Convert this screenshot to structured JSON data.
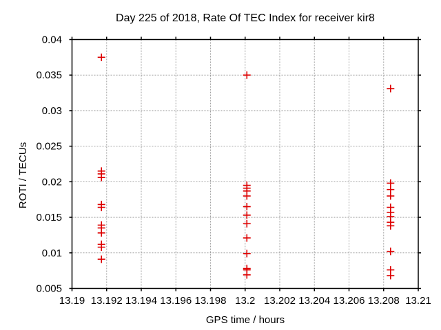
{
  "style": {
    "background": "#ffffff",
    "text_color": "#000000",
    "border_color": "#000000",
    "grid_color": "#a0a0a0",
    "marker_color": "#dd0000"
  },
  "chart_data": {
    "type": "scatter",
    "title": "Day 225 of 2018, Rate Of TEC Index for receiver kir8",
    "xlabel": "GPS time / hours",
    "ylabel": "ROTI / TECUs",
    "xlim": [
      13.19,
      13.21
    ],
    "ylim": [
      0.005,
      0.04
    ],
    "xticks": [
      13.19,
      13.192,
      13.194,
      13.196,
      13.198,
      13.2,
      13.202,
      13.204,
      13.206,
      13.208,
      13.21
    ],
    "xtick_labels": [
      "13.19",
      "13.192",
      "13.194",
      "13.196",
      "13.198",
      "13.2",
      "13.202",
      "13.204",
      "13.206",
      "13.208",
      "13.21"
    ],
    "yticks": [
      0.005,
      0.01,
      0.015,
      0.02,
      0.025,
      0.03,
      0.035,
      0.04
    ],
    "ytick_labels": [
      "0.005",
      "0.01",
      "0.015",
      "0.02",
      "0.025",
      "0.03",
      "0.035",
      "0.04"
    ],
    "grid": true,
    "grid_style": "dashed",
    "legend": "none",
    "marker_shape": "plus",
    "series": [
      {
        "name": "ROTI",
        "color": "#dd0000",
        "points": [
          [
            13.1917,
            0.0375
          ],
          [
            13.1917,
            0.0215
          ],
          [
            13.1917,
            0.0211
          ],
          [
            13.1917,
            0.0206
          ],
          [
            13.1917,
            0.0168
          ],
          [
            13.1917,
            0.0164
          ],
          [
            13.1917,
            0.0139
          ],
          [
            13.1917,
            0.0135
          ],
          [
            13.1917,
            0.0128
          ],
          [
            13.1917,
            0.0112
          ],
          [
            13.1917,
            0.0108
          ],
          [
            13.1917,
            0.0091
          ],
          [
            13.2001,
            0.035
          ],
          [
            13.2001,
            0.0195
          ],
          [
            13.2001,
            0.0191
          ],
          [
            13.2001,
            0.0187
          ],
          [
            13.2001,
            0.018
          ],
          [
            13.2001,
            0.0165
          ],
          [
            13.2001,
            0.0153
          ],
          [
            13.2001,
            0.0141
          ],
          [
            13.2001,
            0.0121
          ],
          [
            13.2001,
            0.0099
          ],
          [
            13.2001,
            0.0078
          ],
          [
            13.2001,
            0.0076
          ],
          [
            13.2001,
            0.0069
          ],
          [
            13.2084,
            0.0331
          ],
          [
            13.2084,
            0.0198
          ],
          [
            13.2084,
            0.0189
          ],
          [
            13.2084,
            0.018
          ],
          [
            13.2084,
            0.0164
          ],
          [
            13.2084,
            0.0157
          ],
          [
            13.2084,
            0.0151
          ],
          [
            13.2084,
            0.0143
          ],
          [
            13.2084,
            0.0138
          ],
          [
            13.2084,
            0.0102
          ],
          [
            13.2084,
            0.0076
          ],
          [
            13.2084,
            0.0068
          ]
        ]
      }
    ]
  }
}
